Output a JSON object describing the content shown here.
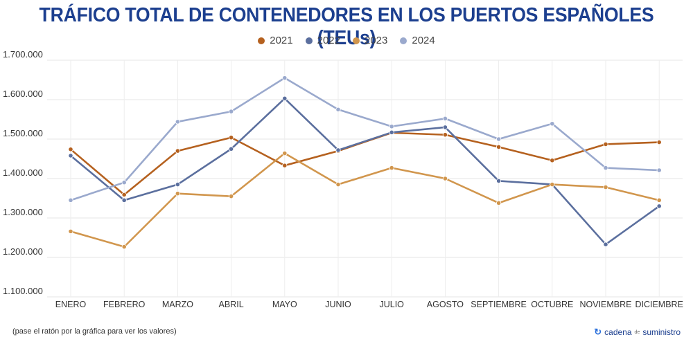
{
  "chart_data": {
    "type": "line",
    "title": "TRÁFICO TOTAL DE CONTENEDORES EN LOS PUERTOS ESPAÑOLES (TEUs)",
    "categories": [
      "ENERO",
      "FEBRERO",
      "MARZO",
      "ABRIL",
      "MAYO",
      "JUNIO",
      "JULIO",
      "AGOSTO",
      "SEPTIEMBRE",
      "OCTUBRE",
      "NOVIEMBRE",
      "DICIEMBRE"
    ],
    "ylim": [
      1100000,
      1700000
    ],
    "yticks": [
      1100000,
      1200000,
      1300000,
      1400000,
      1500000,
      1600000,
      1700000
    ],
    "ytick_labels": [
      "1.100.000",
      "1.200.000",
      "1.300.000",
      "1.400.000",
      "1.500.000",
      "1.600.000",
      "1.700.000"
    ],
    "grid": true,
    "legend_position": "top-center",
    "series": [
      {
        "name": "2021",
        "color": "#b5611f",
        "values": [
          1474000,
          1359000,
          1470000,
          1504000,
          1433000,
          1470000,
          1516000,
          1511000,
          1480000,
          1446000,
          1487000,
          1492000
        ]
      },
      {
        "name": "2022",
        "color": "#5b6f9e",
        "values": [
          1458000,
          1345000,
          1385000,
          1475000,
          1603000,
          1472000,
          1517000,
          1530000,
          1394000,
          1385000,
          1233000,
          1330000
        ]
      },
      {
        "name": "2023",
        "color": "#d1964d",
        "values": [
          1266000,
          1227000,
          1362000,
          1355000,
          1464000,
          1385000,
          1427000,
          1400000,
          1338000,
          1385000,
          1378000,
          1345000
        ]
      },
      {
        "name": "2024",
        "color": "#9aa9cd",
        "values": [
          1345000,
          1390000,
          1544000,
          1570000,
          1655000,
          1575000,
          1532000,
          1552000,
          1500000,
          1539000,
          1427000,
          1421000
        ]
      }
    ]
  },
  "footer": {
    "note": "(pase el ratón por la gráfica para ver los valores)",
    "brand_left": "cadena",
    "brand_mid": "de",
    "brand_right": "suministro"
  }
}
